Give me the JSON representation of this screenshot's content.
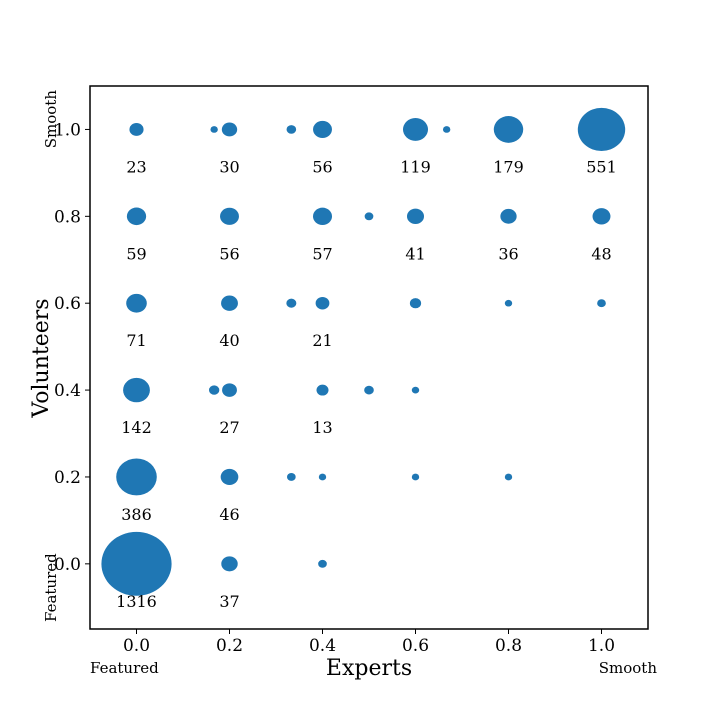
{
  "chart_data": {
    "type": "scatter",
    "xlabel": "Experts",
    "ylabel": "Volunteers",
    "xlim": [
      -0.1,
      1.1
    ],
    "ylim": [
      -0.15,
      1.1
    ],
    "xticks": [
      "0.0",
      "0.2",
      "0.4",
      "0.6",
      "0.8",
      "1.0"
    ],
    "yticks": [
      "0.0",
      "0.2",
      "0.4",
      "0.6",
      "0.8",
      "1.0"
    ],
    "x_end_labels": {
      "low": "Featured",
      "high": "Smooth"
    },
    "y_end_labels": {
      "low": "Featured",
      "high": "Smooth"
    },
    "color": "#1f77b4",
    "grid": false,
    "points": [
      {
        "x": 0.0,
        "y": 1.0,
        "count": 23,
        "label": "23"
      },
      {
        "x": 0.2,
        "y": 1.0,
        "count": 30,
        "label": "30"
      },
      {
        "x": 0.4,
        "y": 1.0,
        "count": 56,
        "label": "56"
      },
      {
        "x": 0.6,
        "y": 1.0,
        "count": 119,
        "label": "119"
      },
      {
        "x": 0.8,
        "y": 1.0,
        "count": 179,
        "label": "179"
      },
      {
        "x": 1.0,
        "y": 1.0,
        "count": 551,
        "label": "551"
      },
      {
        "x": 0.0,
        "y": 0.8,
        "count": 59,
        "label": "59"
      },
      {
        "x": 0.2,
        "y": 0.8,
        "count": 56,
        "label": "56"
      },
      {
        "x": 0.4,
        "y": 0.8,
        "count": 57,
        "label": "57"
      },
      {
        "x": 0.6,
        "y": 0.8,
        "count": 41,
        "label": "41"
      },
      {
        "x": 0.8,
        "y": 0.8,
        "count": 36,
        "label": "36"
      },
      {
        "x": 1.0,
        "y": 0.8,
        "count": 48,
        "label": "48"
      },
      {
        "x": 0.0,
        "y": 0.6,
        "count": 71,
        "label": "71"
      },
      {
        "x": 0.2,
        "y": 0.6,
        "count": 40,
        "label": "40"
      },
      {
        "x": 0.4,
        "y": 0.6,
        "count": 21,
        "label": "21"
      },
      {
        "x": 0.6,
        "y": 0.6,
        "count": 10
      },
      {
        "x": 0.8,
        "y": 0.6,
        "count": 1
      },
      {
        "x": 1.0,
        "y": 0.6,
        "count": 3
      },
      {
        "x": 0.0,
        "y": 0.4,
        "count": 142,
        "label": "142"
      },
      {
        "x": 0.2,
        "y": 0.4,
        "count": 27,
        "label": "27"
      },
      {
        "x": 0.4,
        "y": 0.4,
        "count": 13,
        "label": "13"
      },
      {
        "x": 0.6,
        "y": 0.4,
        "count": 1
      },
      {
        "x": 0.0,
        "y": 0.2,
        "count": 386,
        "label": "386"
      },
      {
        "x": 0.2,
        "y": 0.2,
        "count": 46,
        "label": "46"
      },
      {
        "x": 0.4,
        "y": 0.2,
        "count": 1
      },
      {
        "x": 0.6,
        "y": 0.2,
        "count": 1
      },
      {
        "x": 0.8,
        "y": 0.2,
        "count": 1
      },
      {
        "x": 0.0,
        "y": 0.0,
        "count": 1316,
        "label": "1316"
      },
      {
        "x": 0.2,
        "y": 0.0,
        "count": 37,
        "label": "37"
      },
      {
        "x": 0.4,
        "y": 0.0,
        "count": 3
      },
      {
        "x": 0.167,
        "y": 1.0,
        "count": 1
      },
      {
        "x": 0.333,
        "y": 1.0,
        "count": 5
      },
      {
        "x": 0.667,
        "y": 1.0,
        "count": 1
      },
      {
        "x": 0.5,
        "y": 0.8,
        "count": 3
      },
      {
        "x": 0.333,
        "y": 0.6,
        "count": 6
      },
      {
        "x": 0.167,
        "y": 0.4,
        "count": 7
      },
      {
        "x": 0.5,
        "y": 0.4,
        "count": 5
      },
      {
        "x": 0.333,
        "y": 0.2,
        "count": 3
      }
    ]
  }
}
